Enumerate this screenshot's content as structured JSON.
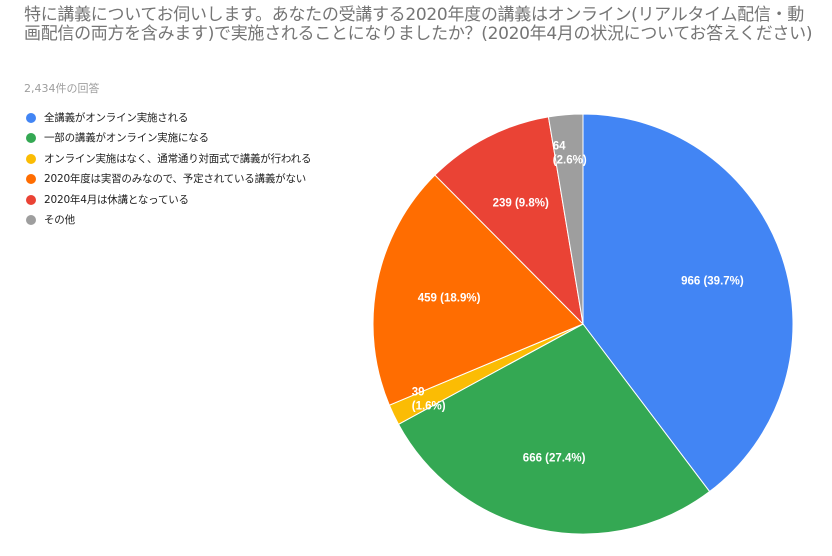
{
  "title": "特に講義についてお伺いします。あなたの受講する2020年度の講義はオンライン(リアルタイム配信・動画配信の両方を含みます)で実施されることになりましたか？(2020年4月の状況についてお答えください)",
  "subtitle": "2,434件の回答",
  "chart_data": {
    "type": "pie",
    "title": "特に講義についてお伺いします。あなたの受講する2020年度の講義はオンライン(リアルタイム配信・動画配信の両方を含みます)で実施されることになりましたか？(2020年4月の状況についてお答えください)",
    "subtitle": "2,434件の回答",
    "legend_position": "left",
    "slices": [
      {
        "label": "全講義がオンライン実施される",
        "value": 966,
        "percent": "39.7%",
        "color": "#4285f4",
        "display": "966 (39.7%)"
      },
      {
        "label": "一部の講義がオンライン実施になる",
        "value": 666,
        "percent": "27.4%",
        "color": "#34a853",
        "display": "666 (27.4%)"
      },
      {
        "label": "オンライン実施はなく、通常通り対面式で講義が行われる",
        "value": 39,
        "percent": "1.6%",
        "color": "#fbbc04",
        "display": "39 (1.6%)"
      },
      {
        "label": "2020年度は実習のみなので、予定されている講義がない",
        "value": 459,
        "percent": "18.9%",
        "color": "#ff6d01",
        "display": "459 (18.9%)"
      },
      {
        "label": "2020年4月は休講となっている",
        "value": 239,
        "percent": "9.8%",
        "color": "#ea4335",
        "display": "239 (9.8%)"
      },
      {
        "label": "その他",
        "value": 64,
        "percent": "2.6%",
        "color": "#9e9e9e",
        "display": "64 (2.6%)"
      }
    ]
  }
}
